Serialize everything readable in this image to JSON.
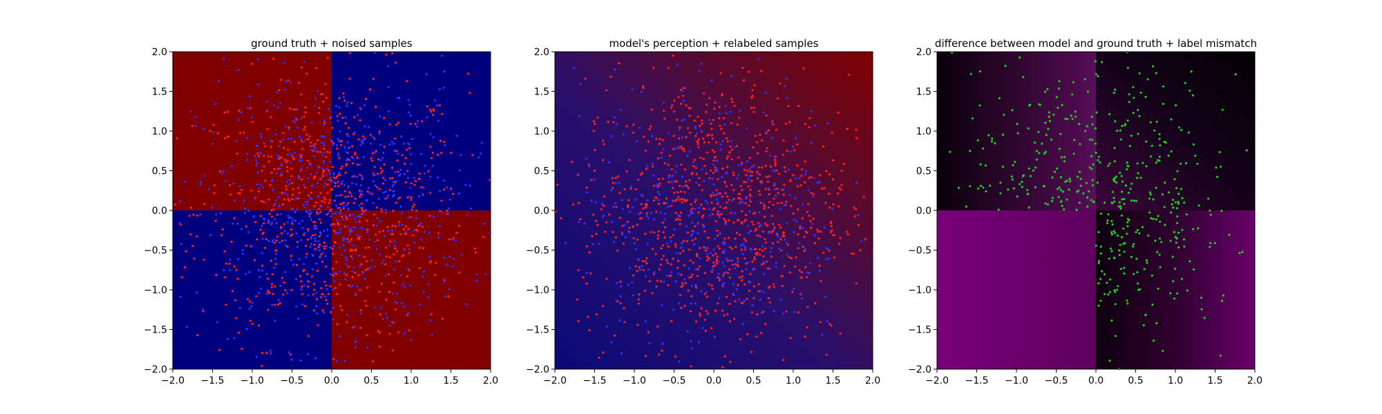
{
  "chart_data": [
    {
      "type": "scatter",
      "title": "ground truth + noised samples",
      "xlabel": "",
      "ylabel": "",
      "xlim": [
        -2.0,
        2.0
      ],
      "ylim": [
        -2.0,
        2.0
      ],
      "xticks": [
        "−2.0",
        "−1.5",
        "−1.0",
        "−0.5",
        "0.0",
        "0.5",
        "1.0",
        "1.5",
        "2.0"
      ],
      "yticks": [
        "−2.0",
        "−1.5",
        "−1.0",
        "−0.5",
        "0.0",
        "0.5",
        "1.0",
        "1.5",
        "2.0"
      ],
      "background": "XOR quadrant map: red where x<0,y>0 and x>0,y<0; blue elsewhere",
      "series": [
        {
          "color": "#ff2020",
          "n_points": 700
        },
        {
          "color": "#3030ff",
          "n_points": 700
        }
      ]
    },
    {
      "type": "scatter",
      "title": "model's perception + relabeled samples",
      "xlabel": "",
      "ylabel": "",
      "xlim": [
        -2.0,
        2.0
      ],
      "ylim": [
        -2.0,
        2.0
      ],
      "xticks": [
        "−2.0",
        "−1.5",
        "−1.0",
        "−0.5",
        "0.0",
        "0.5",
        "1.0",
        "1.5",
        "2.0"
      ],
      "yticks": [
        "−2.0",
        "−1.5",
        "−1.0",
        "−0.5",
        "0.0",
        "0.5",
        "1.0",
        "1.5",
        "2.0"
      ],
      "background": "smooth diagonal gradient: blue bottom-left to red top-right",
      "series": [
        {
          "color": "#ff2020",
          "n_points": 900
        },
        {
          "color": "#3030ff",
          "n_points": 400
        }
      ]
    },
    {
      "type": "scatter",
      "title": "difference between model and ground truth + label mismatch",
      "xlabel": "",
      "ylabel": "",
      "xlim": [
        -2.0,
        2.0
      ],
      "ylim": [
        -2.0,
        2.0
      ],
      "xticks": [
        "−2.0",
        "−1.5",
        "−1.0",
        "−0.5",
        "0.0",
        "0.5",
        "1.0",
        "1.5",
        "2.0"
      ],
      "yticks": [
        "−2.0",
        "−1.5",
        "−1.0",
        "−0.5",
        "0.0",
        "0.5",
        "1.0",
        "1.5",
        "2.0"
      ],
      "background": "dark/purple difference map, bright purple in bottom-left quadrant",
      "series": [
        {
          "color": "#22cc22",
          "n_points": 480
        }
      ]
    }
  ],
  "colors": {
    "red_region": "#800000",
    "blue_region": "#00007f",
    "purple": "#6a006a",
    "dark": "#050005",
    "red_points": "#ff2020",
    "blue_points": "#3030ff",
    "green_points": "#22cc22"
  }
}
